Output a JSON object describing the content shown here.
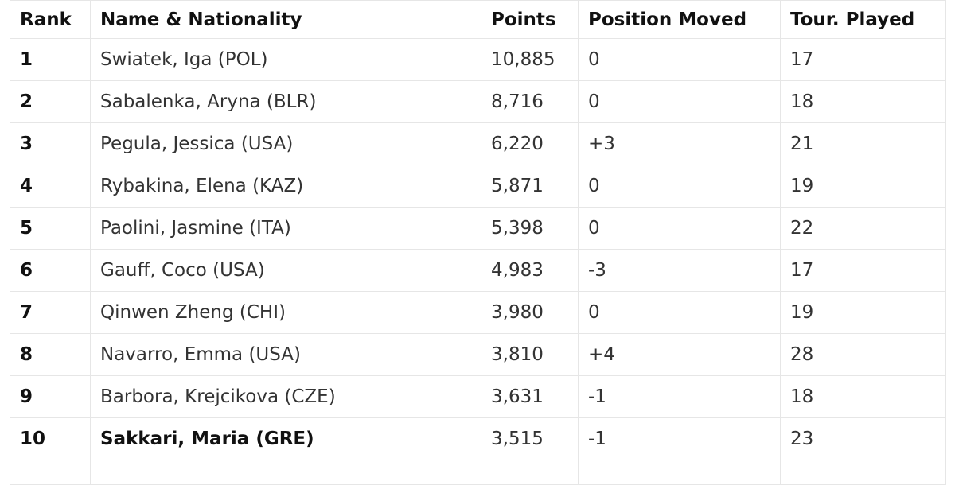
{
  "table": {
    "headers": [
      "Rank",
      "Name & Nationality",
      "Points",
      "Position Moved",
      "Tour. Played"
    ],
    "rows": [
      [
        "1",
        "Swiatek, Iga (POL)",
        "10,885",
        "0",
        "17"
      ],
      [
        "2",
        "Sabalenka, Aryna (BLR)",
        "8,716",
        "0",
        "18"
      ],
      [
        "3",
        "Pegula, Jessica (USA)",
        "6,220",
        "+3",
        "21"
      ],
      [
        "4",
        "Rybakina, Elena (KAZ)",
        "5,871",
        "0",
        "19"
      ],
      [
        "5",
        "Paolini, Jasmine (ITA)",
        "5,398",
        "0",
        "22"
      ],
      [
        "6",
        "Gauff, Coco (USA)",
        "4,983",
        "-3",
        "17"
      ],
      [
        "7",
        "Qinwen Zheng (CHI)",
        "3,980",
        "0",
        "19"
      ],
      [
        "8",
        "Navarro, Emma (USA)",
        "3,810",
        "+4",
        "28"
      ],
      [
        "9",
        "Barbora, Krejcikova (CZE)",
        "3,631",
        "-1",
        "18"
      ],
      [
        "10",
        "Sakkari, Maria (GRE)",
        "3,515",
        "-1",
        "23"
      ]
    ]
  }
}
